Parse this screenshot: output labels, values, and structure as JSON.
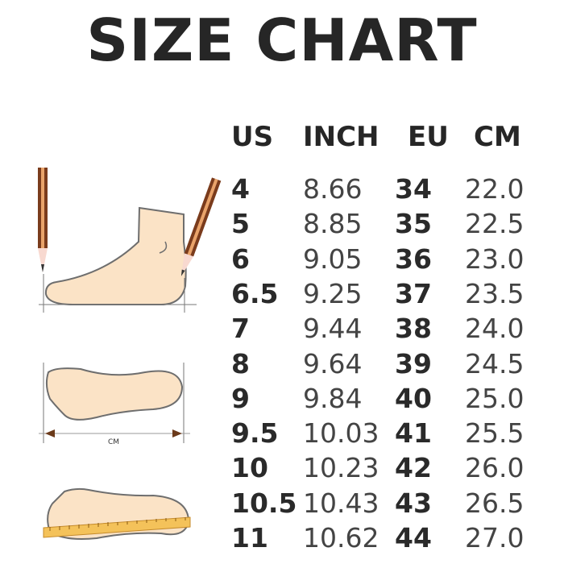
{
  "title": "SIZE CHART",
  "headers": [
    "US",
    "INCH",
    "EU",
    "CM"
  ],
  "rows": [
    [
      "4",
      "8.66",
      "34",
      "22.0"
    ],
    [
      "5",
      "8.85",
      "35",
      "22.5"
    ],
    [
      "6",
      "9.05",
      "36",
      "23.0"
    ],
    [
      "6.5",
      "9.25",
      "37",
      "23.5"
    ],
    [
      "7",
      "9.44",
      "38",
      "24.0"
    ],
    [
      "8",
      "9.64",
      "39",
      "24.5"
    ],
    [
      "9",
      "9.84",
      "40",
      "25.0"
    ],
    [
      "9.5",
      "10.03",
      "41",
      "25.5"
    ],
    [
      "10",
      "10.23",
      "42",
      "26.0"
    ],
    [
      "10.5",
      "10.43",
      "43",
      "26.5"
    ],
    [
      "11",
      "10.62",
      "44",
      "27.0"
    ]
  ],
  "illustration": {
    "measure_label": "CM"
  },
  "colors": {
    "skin": "#fbe3c6",
    "outline": "#6e6e6e",
    "pencil": "#7a3b1c",
    "ruler": "#f4c25a"
  }
}
